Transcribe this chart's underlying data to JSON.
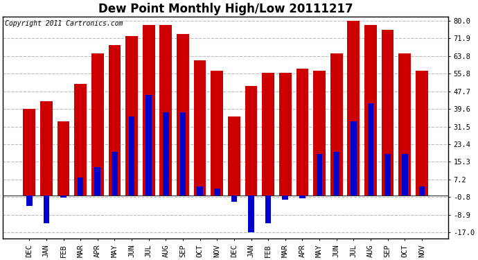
{
  "title": "Dew Point Monthly High/Low 20111217",
  "copyright": "Copyright 2011 Cartronics.com",
  "categories": [
    "DEC",
    "JAN",
    "FEB",
    "MAR",
    "APR",
    "MAY",
    "JUN",
    "JUL",
    "AUG",
    "SEP",
    "OCT",
    "NOV",
    "DEC",
    "JAN",
    "FEB",
    "MAR",
    "APR",
    "MAY",
    "JUN",
    "JUL",
    "AUG",
    "SEP",
    "OCT",
    "NOV"
  ],
  "highs": [
    39.6,
    43.0,
    34.0,
    51.0,
    65.0,
    69.0,
    73.0,
    78.0,
    78.0,
    74.0,
    62.0,
    57.0,
    36.0,
    50.0,
    56.0,
    56.0,
    58.0,
    57.0,
    65.0,
    80.0,
    78.0,
    76.0,
    65.0,
    57.0
  ],
  "lows": [
    -5.0,
    -13.0,
    -1.0,
    8.0,
    13.0,
    20.0,
    36.0,
    46.0,
    38.0,
    38.0,
    4.0,
    3.0,
    -3.0,
    -17.0,
    -13.0,
    -2.0,
    -1.5,
    19.0,
    20.0,
    34.0,
    42.0,
    19.0,
    19.0,
    4.0
  ],
  "high_color": "#cc0000",
  "low_color": "#0000cc",
  "background_color": "#ffffff",
  "plot_background": "#ffffff",
  "grid_color": "#bbbbbb",
  "yticks": [
    -17.0,
    -8.9,
    -0.8,
    7.2,
    15.3,
    23.4,
    31.5,
    39.6,
    47.7,
    55.8,
    63.8,
    71.9,
    80.0
  ],
  "ylim": [
    -20,
    82
  ],
  "title_fontsize": 12,
  "tick_fontsize": 7.5,
  "copyright_fontsize": 7
}
